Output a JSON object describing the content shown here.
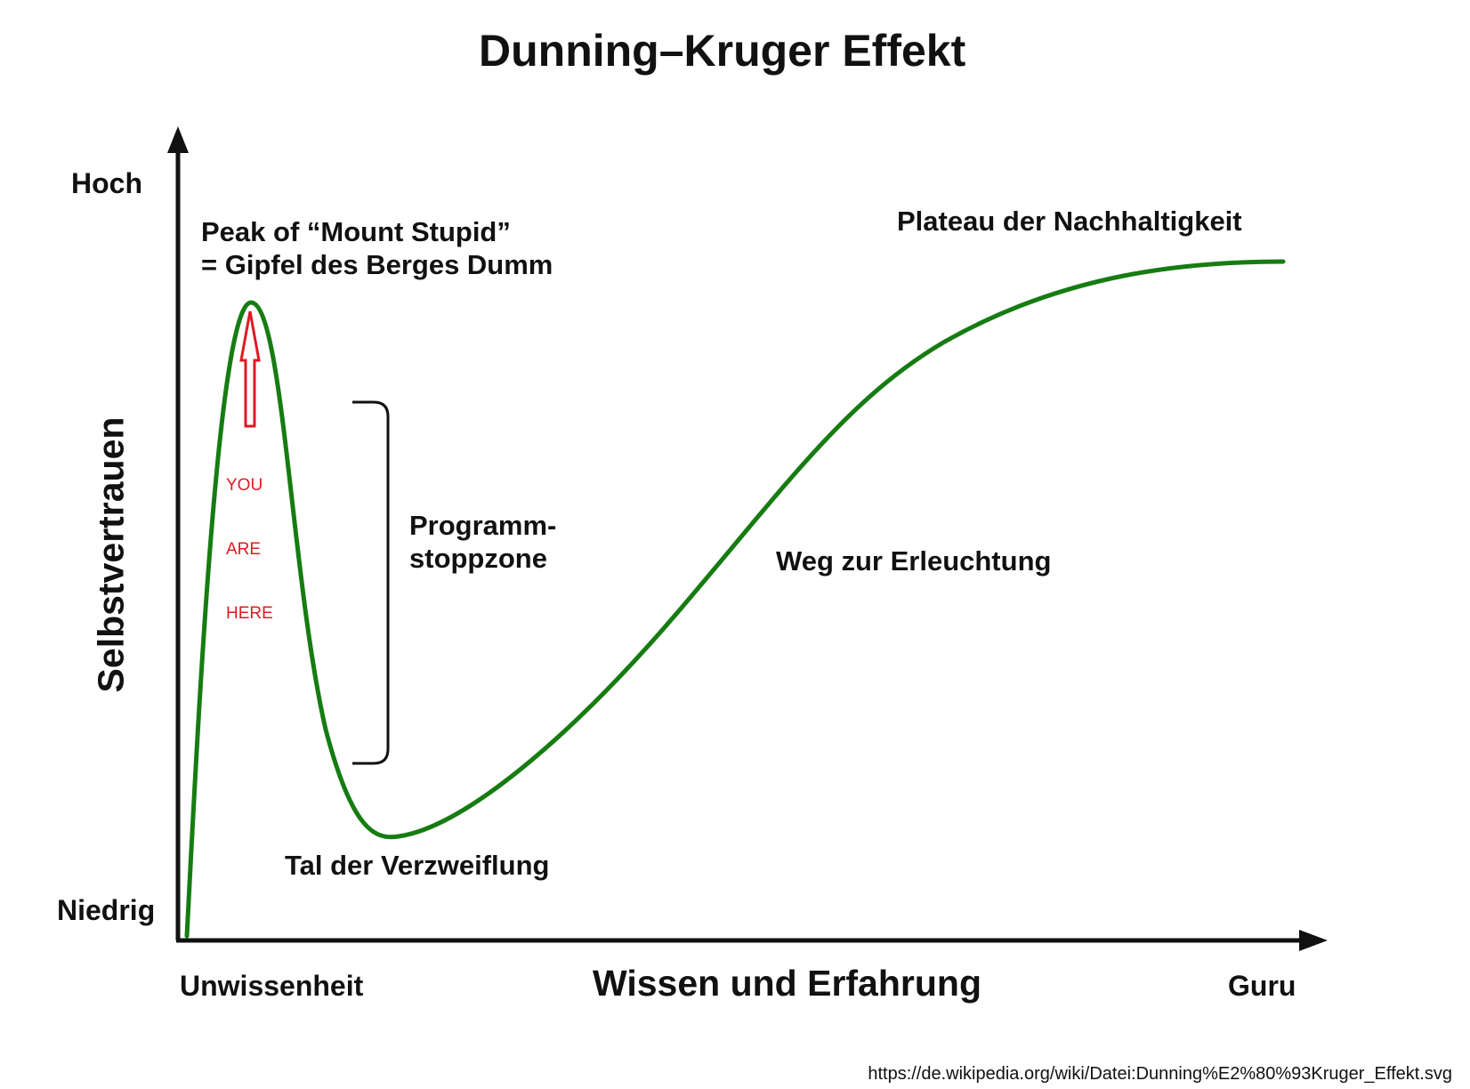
{
  "title": "Dunning–Kruger Effekt",
  "axes": {
    "y_title": "Selbstvertrauen",
    "y_high": "Hoch",
    "y_low": "Niedrig",
    "x_title": "Wissen und Erfahrung",
    "x_low": "Unwissenheit",
    "x_high": "Guru"
  },
  "annotations": {
    "peak_line1": "Peak of “Mount Stupid”",
    "peak_line2": "= Gipfel des Berges Dumm",
    "plateau": "Plateau der Nachhaltigkeit",
    "stop_zone_line1": "Programm-",
    "stop_zone_line2": "stoppzone",
    "enlightenment": "Weg zur Erleuchtung",
    "valley": "Tal der Verzweiflung",
    "you_are_here_line1": "YOU",
    "you_are_here_line2": "ARE",
    "you_are_here_line3": "HERE"
  },
  "source": "https://de.wikipedia.org/wiki/Datei:Dunning%E2%80%93Kruger_Effekt.svg",
  "colors": {
    "curve": "#167c12",
    "marker": "#dd1b22",
    "axis": "#111111"
  }
}
